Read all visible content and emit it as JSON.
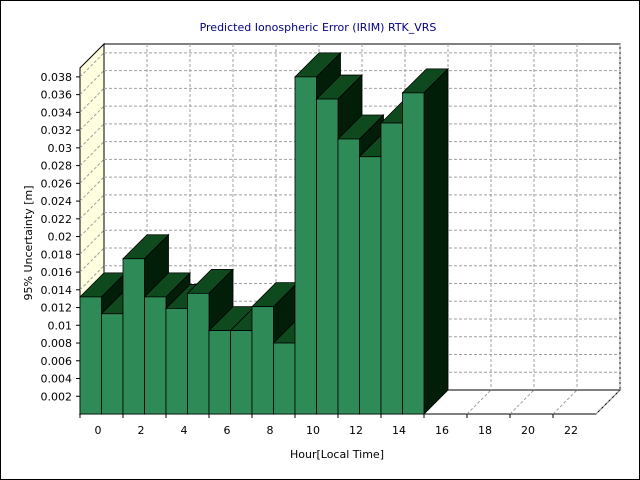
{
  "chart_data": {
    "type": "bar",
    "title": "Predicted Ionospheric Error (IRIM) RTK_VRS",
    "xlabel": "Hour[Local Time]",
    "ylabel": "95% Uncertainty [m]",
    "x": [
      0,
      1,
      2,
      3,
      4,
      5,
      6,
      7,
      8,
      9,
      10,
      11,
      12,
      13,
      14,
      15
    ],
    "values": [
      0.0132,
      0.0113,
      0.0175,
      0.0132,
      0.0119,
      0.0136,
      0.0094,
      0.0094,
      0.0121,
      0.008,
      0.038,
      0.0355,
      0.031,
      0.029,
      0.0328,
      0.0362
    ],
    "x_ticks": [
      "0",
      "2",
      "4",
      "6",
      "8",
      "10",
      "12",
      "14",
      "16",
      "18",
      "20",
      "22"
    ],
    "y_ticks": [
      "0.002",
      "0.004",
      "0.006",
      "0.008",
      "0.01",
      "0.012",
      "0.014",
      "0.016",
      "0.018",
      "0.02",
      "0.022",
      "0.024",
      "0.026",
      "0.028",
      "0.03",
      "0.032",
      "0.034",
      "0.036",
      "0.038"
    ],
    "xlim": [
      0,
      24
    ],
    "ylim": [
      0,
      0.039
    ],
    "grid": true,
    "legend": "none",
    "colors": {
      "bar_front": "#2e8b57",
      "bar_top": "#0f4a1e",
      "bar_side": "#021d08",
      "back_wall": "#ffffff",
      "side_wall": "#ffffe0",
      "grid": "#a0a0a0",
      "title": "#000080"
    }
  }
}
